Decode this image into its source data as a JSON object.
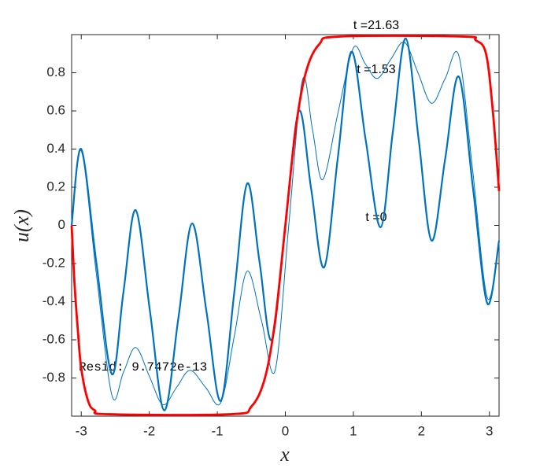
{
  "chart_data": {
    "type": "line",
    "xlabel": "x",
    "ylabel": "u(x)",
    "xlim": [
      -3.1416,
      3.1416
    ],
    "ylim": [
      -1,
      1
    ],
    "xticks": [
      -3,
      -2,
      -1,
      0,
      1,
      2,
      3
    ],
    "yticks": [
      -0.8,
      -0.6,
      -0.4,
      -0.2,
      0,
      0.2,
      0.4,
      0.6,
      0.8
    ],
    "annotations": [
      "t =21.63",
      "t =1.53",
      "t =0",
      "Resid: 9.7472e-13"
    ],
    "series": [
      {
        "color": "#0072bd",
        "width": 2.2,
        "x": [
          -3.1416,
          -3.0,
          -2.78,
          -2.55,
          -2.38,
          -2.2,
          -1.99,
          -1.78,
          -1.57,
          -1.37,
          -1.16,
          -0.95,
          -0.75,
          -0.56,
          -0.38,
          -0.2,
          0,
          0.2,
          0.38,
          0.57,
          0.77,
          0.97,
          1.18,
          1.4,
          1.58,
          1.77,
          1.96,
          2.15,
          2.35,
          2.55,
          2.76,
          2.97,
          3.1416
        ],
        "values": [
          0,
          0.4,
          -0.19,
          -0.78,
          -0.35,
          0.08,
          -0.45,
          -0.97,
          -0.48,
          0.01,
          -0.45,
          -0.92,
          -0.35,
          0.22,
          -0.19,
          -0.6,
          0,
          0.6,
          0.19,
          -0.22,
          0.35,
          0.91,
          0.45,
          -0.01,
          0.49,
          0.98,
          0.45,
          -0.08,
          0.35,
          0.78,
          0.19,
          -0.41,
          -0.08
        ]
      },
      {
        "color": "#0072bd",
        "width": 1,
        "x": [
          -3.1416,
          -3.0,
          -2.78,
          -2.55,
          -2.38,
          -2.2,
          -2.0,
          -1.8,
          -1.6,
          -1.4,
          -1.17,
          -0.95,
          -0.75,
          -0.56,
          -0.35,
          -0.15,
          0.05,
          0.25,
          0.4,
          0.55,
          0.78,
          1.0,
          1.17,
          1.35,
          1.55,
          1.75,
          1.95,
          2.15,
          2.35,
          2.55,
          2.75,
          2.97,
          3.1416
        ],
        "values": [
          0,
          0.39,
          -0.25,
          -0.89,
          -0.77,
          -0.64,
          -0.79,
          -0.94,
          -0.85,
          -0.76,
          -0.85,
          -0.93,
          -0.58,
          -0.24,
          -0.5,
          -0.76,
          0,
          0.76,
          0.5,
          0.24,
          0.6,
          0.93,
          0.85,
          0.77,
          0.87,
          0.96,
          0.8,
          0.64,
          0.77,
          0.89,
          0.3,
          -0.38,
          -0.08
        ]
      },
      {
        "color": "#ff0000",
        "width": 2.8,
        "x": [
          -3.1416,
          -3.1,
          -3.05,
          -3.0,
          -2.9,
          -2.8,
          -2.6,
          -0.8,
          -0.5,
          -0.3,
          -0.15,
          0,
          0.15,
          0.3,
          0.5,
          0.8,
          2.6,
          2.8,
          2.95,
          3.05,
          3.1416
        ],
        "values": [
          0,
          -0.3,
          -0.55,
          -0.75,
          -0.92,
          -0.97,
          -0.99,
          -0.99,
          -0.95,
          -0.8,
          -0.5,
          0,
          0.5,
          0.8,
          0.95,
          0.99,
          0.99,
          0.97,
          0.9,
          0.6,
          0.18
        ]
      }
    ]
  }
}
